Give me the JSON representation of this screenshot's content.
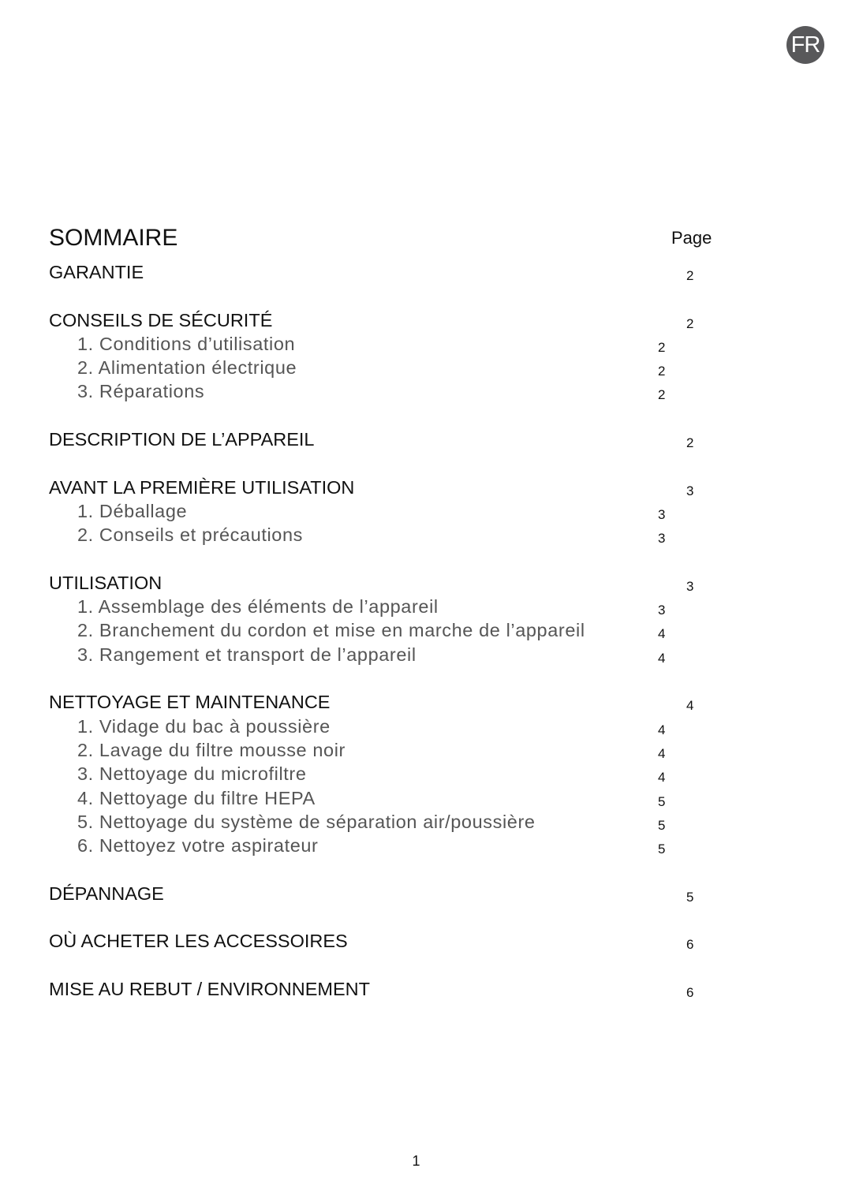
{
  "language_badge": "FR",
  "title": "SOMMAIRE",
  "page_column_label": "Page",
  "sections": [
    {
      "title": "GARANTIE",
      "page": "2",
      "items": []
    },
    {
      "title": "CONSEILS DE SÉCURITÉ",
      "page": "2",
      "items": [
        {
          "label": "1. Conditions d’utilisation",
          "page": "2"
        },
        {
          "label": "2. Alimentation électrique",
          "page": "2"
        },
        {
          "label": "3. Réparations",
          "page": "2"
        }
      ]
    },
    {
      "title": "DESCRIPTION DE L’APPAREIL",
      "page": "2",
      "items": []
    },
    {
      "title": "AVANT LA PREMIÈRE UTILISATION",
      "page": "3",
      "items": [
        {
          "label": "1. Déballage",
          "page": "3"
        },
        {
          "label": "2. Conseils et précautions",
          "page": "3"
        }
      ]
    },
    {
      "title": "UTILISATION",
      "page": "3",
      "items": [
        {
          "label": "1. Assemblage des éléments de l’appareil",
          "page": "3"
        },
        {
          "label": "2. Branchement du cordon et mise en marche de l’appareil",
          "page": "4"
        },
        {
          "label": "3. Rangement et transport de l’appareil",
          "page": "4"
        }
      ]
    },
    {
      "title": "NETTOYAGE ET MAINTENANCE",
      "page": "4",
      "items": [
        {
          "label": "1. Vidage du bac à poussière",
          "page": "4"
        },
        {
          "label": "2. Lavage du filtre mousse noir",
          "page": "4"
        },
        {
          "label": "3. Nettoyage du microfiltre",
          "page": "4"
        },
        {
          "label": "4. Nettoyage du filtre HEPA",
          "page": "5"
        },
        {
          "label": "5. Nettoyage du système de séparation air/poussière",
          "page": "5"
        },
        {
          "label": "6. Nettoyez votre aspirateur",
          "page": "5"
        }
      ]
    },
    {
      "title": "DÉPANNAGE",
      "page": "5",
      "items": []
    },
    {
      "title": "OÙ ACHETER LES ACCESSOIRES",
      "page": "6",
      "items": []
    },
    {
      "title": "MISE AU REBUT / ENVIRONNEMENT",
      "page": "6",
      "items": []
    }
  ],
  "footer_page_number": "1",
  "colors": {
    "badge": "#58585a",
    "subitem_text": "#555555",
    "text": "#111111"
  }
}
